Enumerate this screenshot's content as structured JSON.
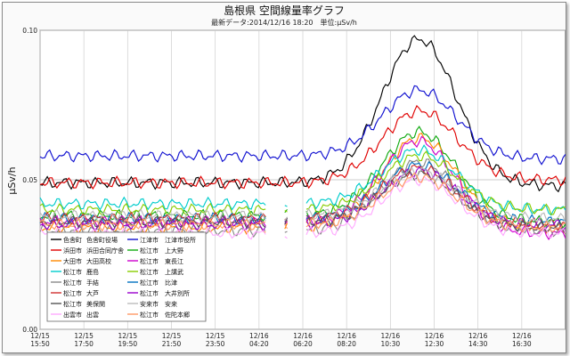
{
  "chart_data": {
    "type": "line",
    "title": "島根県 空間線量率グラフ",
    "subtitle": "最新データ:2014/12/16 18:20　単位:μSv/h",
    "ylabel": "μSv/h",
    "ylim": [
      0.0,
      0.1
    ],
    "y_ticks": [
      "0.00",
      "0.05",
      "0.10"
    ],
    "x_ticks": [
      [
        "12/15",
        "15:50"
      ],
      [
        "12/15",
        "17:50"
      ],
      [
        "12/15",
        "19:50"
      ],
      [
        "12/15",
        "21:50"
      ],
      [
        "12/15",
        "23:50"
      ],
      [
        "12/16",
        "04:20"
      ],
      [
        "12/16",
        "06:20"
      ],
      [
        "12/16",
        "08:20"
      ],
      [
        "12/16",
        "10:30"
      ],
      [
        "12/16",
        "12:30"
      ],
      [
        "12/16",
        "14:30"
      ],
      [
        "12/16",
        "16:30"
      ]
    ],
    "grid": true,
    "legend_position": "bottom-left",
    "peak_label_x": "12:50",
    "series": [
      {
        "name": "色舎町 色舎町役場",
        "color": "#000000",
        "base": 0.049,
        "peak": 0.097,
        "rise": 0.003,
        "end": 0.048,
        "gap": false
      },
      {
        "name": "江津市 江津市役所",
        "color": "#1010d0",
        "base": 0.058,
        "peak": 0.08,
        "rise": 0.004,
        "end": 0.057,
        "gap": false
      },
      {
        "name": "浜田市 浜田合同庁舎",
        "color": "#e00000",
        "base": 0.049,
        "peak": 0.073,
        "rise": 0.004,
        "end": 0.05,
        "gap": false
      },
      {
        "name": "松江市 上大野",
        "color": "#11aa11",
        "base": 0.038,
        "peak": 0.066,
        "rise": 0.005,
        "end": 0.036,
        "gap": false
      },
      {
        "name": "大田市 大田高校",
        "color": "#ff8800",
        "base": 0.034,
        "peak": 0.064,
        "rise": 0.006,
        "end": 0.034,
        "gap": true
      },
      {
        "name": "松江市 東長江",
        "color": "#cc00cc",
        "base": 0.036,
        "peak": 0.063,
        "rise": 0.006,
        "end": 0.032,
        "gap": false
      },
      {
        "name": "松江市 鹿島",
        "color": "#00cccc",
        "base": 0.042,
        "peak": 0.06,
        "rise": 0.005,
        "end": 0.04,
        "gap": false
      },
      {
        "name": "松江市 上講武",
        "color": "#88cc00",
        "base": 0.04,
        "peak": 0.058,
        "rise": 0.005,
        "end": 0.04,
        "gap": false
      },
      {
        "name": "松江市 手結",
        "color": "#888888",
        "base": 0.033,
        "peak": 0.056,
        "rise": 0.006,
        "end": 0.033,
        "gap": false
      },
      {
        "name": "松江市 比津",
        "color": "#0070c0",
        "base": 0.037,
        "peak": 0.055,
        "rise": 0.005,
        "end": 0.036,
        "gap": false
      },
      {
        "name": "松江市 大芦",
        "color": "#d03030",
        "base": 0.037,
        "peak": 0.054,
        "rise": 0.005,
        "end": 0.035,
        "gap": false
      },
      {
        "name": "松江市 大井別所",
        "color": "#9900cc",
        "base": 0.035,
        "peak": 0.053,
        "rise": 0.005,
        "end": 0.035,
        "gap": false
      },
      {
        "name": "松江市 美保関",
        "color": "#555555",
        "base": 0.036,
        "peak": 0.052,
        "rise": 0.006,
        "end": 0.034,
        "gap": false
      },
      {
        "name": "安来市 安来",
        "color": "#bbbbbb",
        "base": 0.038,
        "peak": 0.053,
        "rise": 0.005,
        "end": 0.037,
        "gap": false
      },
      {
        "name": "出雲市 出雲",
        "color": "#ffaaff",
        "base": 0.032,
        "peak": 0.05,
        "rise": 0.006,
        "end": 0.032,
        "gap": false
      },
      {
        "name": "松江市 佐陀本郷",
        "color": "#ff9966",
        "base": 0.035,
        "peak": 0.051,
        "rise": 0.005,
        "end": 0.034,
        "gap": false
      }
    ],
    "legend_rows": [
      [
        {
          "label": "色舎町",
          "series": 0
        },
        {
          "label": "色舎町役場",
          "series": 0
        },
        {
          "label": "江津市",
          "series": 1
        },
        {
          "label": "江津市役所",
          "series": 1
        }
      ],
      [
        {
          "label": "浜田市",
          "series": 2
        },
        {
          "label": "浜田合同庁舎",
          "series": 2
        },
        {
          "label": "松江市",
          "series": 3
        },
        {
          "label": "上大野",
          "series": 3
        }
      ],
      [
        {
          "label": "大田市",
          "series": 4
        },
        {
          "label": "大田高校",
          "series": 4
        },
        {
          "label": "松江市",
          "series": 5
        },
        {
          "label": "東長江",
          "series": 5
        }
      ],
      [
        {
          "label": "松江市",
          "series": 6
        },
        {
          "label": "鹿島",
          "series": 6
        },
        {
          "label": "松江市",
          "series": 7
        },
        {
          "label": "上講武",
          "series": 7
        }
      ],
      [
        {
          "label": "松江市",
          "series": 8
        },
        {
          "label": "手結",
          "series": 8
        },
        {
          "label": "松江市",
          "series": 9
        },
        {
          "label": "比津",
          "series": 9
        }
      ],
      [
        {
          "label": "松江市",
          "series": 10
        },
        {
          "label": "大芦",
          "series": 10
        },
        {
          "label": "松江市",
          "series": 11
        },
        {
          "label": "大井別所",
          "series": 11
        }
      ],
      [
        {
          "label": "松江市",
          "series": 12
        },
        {
          "label": "美保関",
          "series": 12
        },
        {
          "label": "安来市",
          "series": 13
        },
        {
          "label": "安来",
          "series": 13
        }
      ],
      [
        {
          "label": "出雲市",
          "series": 14
        },
        {
          "label": "出雲",
          "series": 14
        },
        {
          "label": "松江市",
          "series": 15
        },
        {
          "label": "佐陀本郷",
          "series": 15
        }
      ]
    ]
  }
}
